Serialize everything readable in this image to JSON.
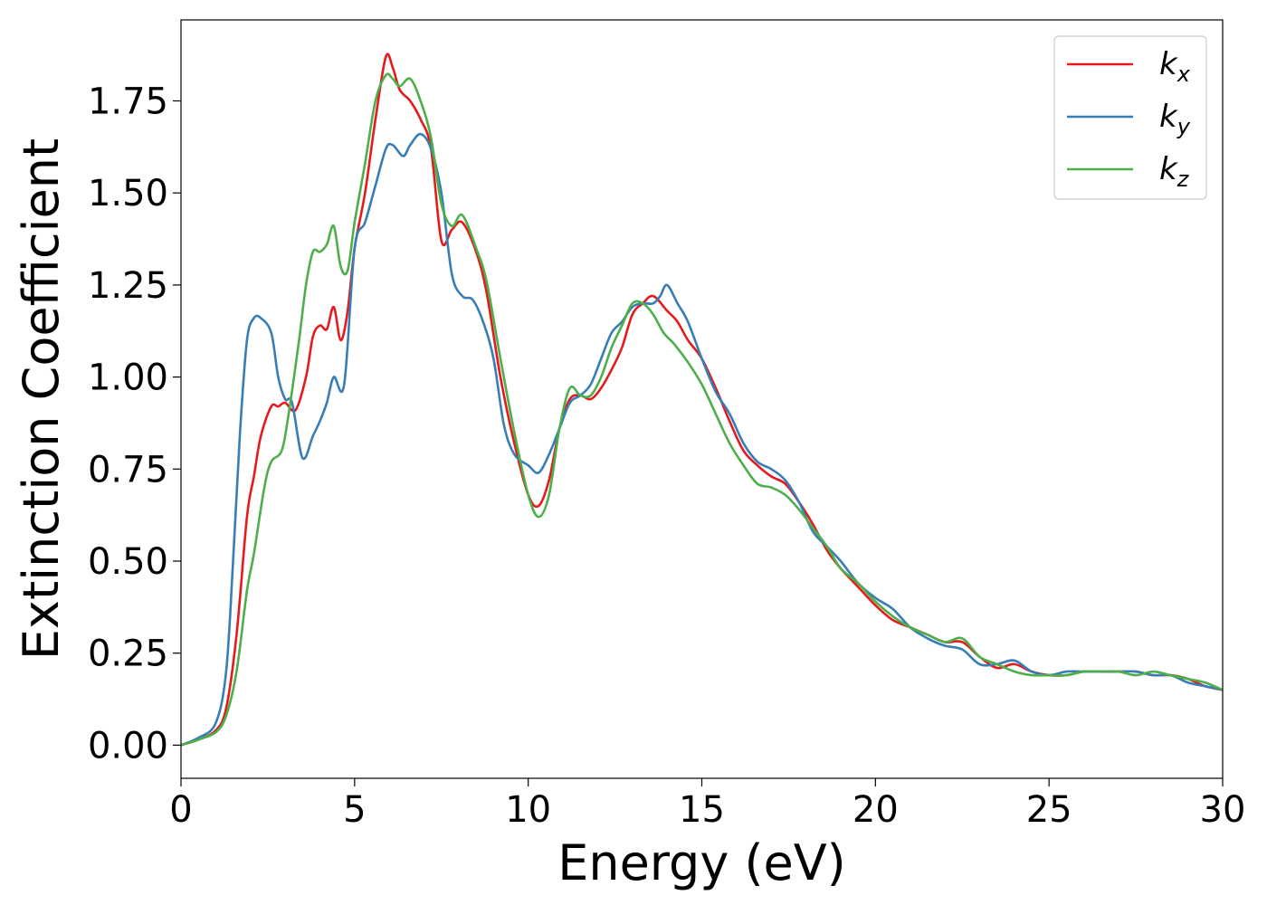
{
  "chart_data": {
    "type": "line",
    "xlabel": "Energy (eV)",
    "ylabel": "Extinction Coefficient",
    "xlim": [
      0,
      30
    ],
    "ylim": [
      -0.09,
      1.97
    ],
    "xticks": [
      0,
      5,
      10,
      15,
      20,
      25,
      30
    ],
    "xtick_labels": [
      "0",
      "5",
      "10",
      "15",
      "20",
      "25",
      "30"
    ],
    "yticks": [
      0,
      0.25,
      0.5,
      0.75,
      1.0,
      1.25,
      1.5,
      1.75
    ],
    "ytick_labels": [
      "0.00",
      "0.25",
      "0.50",
      "0.75",
      "1.00",
      "1.25",
      "1.50",
      "1.75"
    ],
    "grid": false,
    "legend_position": "top-right",
    "series": [
      {
        "name": "k_x",
        "legend_base": "k",
        "legend_sub": "x",
        "color": "#e41a1c",
        "x": [
          0,
          0.5,
          1.0,
          1.3,
          1.6,
          1.9,
          2.1,
          2.3,
          2.6,
          2.8,
          3.0,
          3.3,
          3.6,
          3.8,
          4.0,
          4.2,
          4.4,
          4.6,
          4.8,
          5.0,
          5.3,
          5.6,
          5.9,
          6.1,
          6.3,
          6.6,
          6.9,
          7.2,
          7.5,
          7.8,
          8.1,
          8.5,
          8.8,
          9.2,
          9.6,
          10.0,
          10.3,
          10.6,
          10.9,
          11.2,
          11.5,
          11.8,
          12.1,
          12.4,
          12.7,
          13.0,
          13.3,
          13.6,
          14.0,
          14.3,
          14.6,
          15.0,
          15.4,
          15.8,
          16.2,
          16.6,
          17.0,
          17.4,
          17.8,
          18.2,
          18.6,
          19.0,
          19.5,
          20.0,
          20.5,
          21.0,
          21.5,
          22.0,
          22.5,
          23.0,
          23.5,
          24.0,
          24.5,
          25.0,
          25.5,
          26.0,
          26.5,
          27.0,
          27.5,
          28.0,
          28.5,
          29.0,
          29.5,
          30.0
        ],
        "y": [
          0.0,
          0.015,
          0.04,
          0.1,
          0.3,
          0.62,
          0.73,
          0.84,
          0.92,
          0.92,
          0.93,
          0.91,
          1.0,
          1.11,
          1.14,
          1.13,
          1.19,
          1.1,
          1.18,
          1.35,
          1.5,
          1.7,
          1.87,
          1.84,
          1.78,
          1.75,
          1.7,
          1.62,
          1.37,
          1.4,
          1.42,
          1.34,
          1.23,
          1.0,
          0.82,
          0.68,
          0.65,
          0.72,
          0.86,
          0.94,
          0.95,
          0.94,
          0.97,
          1.02,
          1.08,
          1.17,
          1.2,
          1.22,
          1.18,
          1.15,
          1.1,
          1.05,
          0.97,
          0.88,
          0.8,
          0.76,
          0.73,
          0.71,
          0.66,
          0.6,
          0.53,
          0.48,
          0.43,
          0.38,
          0.34,
          0.32,
          0.3,
          0.28,
          0.28,
          0.24,
          0.21,
          0.22,
          0.2,
          0.19,
          0.19,
          0.2,
          0.2,
          0.2,
          0.2,
          0.19,
          0.19,
          0.18,
          0.16,
          0.15
        ]
      },
      {
        "name": "k_y",
        "legend_base": "k",
        "legend_sub": "y",
        "color": "#377eb8",
        "x": [
          0,
          0.5,
          1.0,
          1.3,
          1.5,
          1.7,
          1.9,
          2.1,
          2.3,
          2.6,
          2.8,
          3.0,
          3.2,
          3.5,
          3.8,
          4.0,
          4.2,
          4.4,
          4.7,
          5.0,
          5.3,
          5.6,
          5.9,
          6.1,
          6.4,
          6.6,
          6.9,
          7.2,
          7.5,
          7.8,
          8.1,
          8.4,
          8.7,
          9.0,
          9.3,
          9.6,
          10.0,
          10.3,
          10.6,
          10.9,
          11.2,
          11.5,
          11.8,
          12.1,
          12.4,
          12.7,
          13.0,
          13.3,
          13.6,
          13.8,
          14.0,
          14.3,
          14.6,
          15.0,
          15.4,
          15.8,
          16.2,
          16.6,
          17.0,
          17.4,
          17.8,
          18.2,
          18.6,
          19.0,
          19.5,
          20.0,
          20.5,
          21.0,
          21.5,
          22.0,
          22.5,
          23.0,
          23.5,
          24.0,
          24.5,
          25.0,
          25.5,
          26.0,
          26.5,
          27.0,
          27.5,
          28.0,
          28.5,
          29.0,
          29.5,
          30.0
        ],
        "y": [
          0.0,
          0.02,
          0.06,
          0.2,
          0.5,
          0.85,
          1.1,
          1.16,
          1.16,
          1.12,
          1.0,
          0.94,
          0.93,
          0.78,
          0.84,
          0.88,
          0.93,
          1.0,
          0.98,
          1.35,
          1.42,
          1.52,
          1.62,
          1.63,
          1.6,
          1.63,
          1.66,
          1.62,
          1.5,
          1.28,
          1.22,
          1.21,
          1.15,
          1.05,
          0.87,
          0.79,
          0.76,
          0.74,
          0.79,
          0.86,
          0.93,
          0.95,
          0.98,
          1.05,
          1.12,
          1.15,
          1.19,
          1.2,
          1.2,
          1.22,
          1.25,
          1.2,
          1.15,
          1.05,
          0.96,
          0.9,
          0.82,
          0.77,
          0.75,
          0.72,
          0.66,
          0.58,
          0.54,
          0.5,
          0.44,
          0.4,
          0.37,
          0.32,
          0.29,
          0.27,
          0.26,
          0.22,
          0.22,
          0.23,
          0.2,
          0.19,
          0.2,
          0.2,
          0.2,
          0.2,
          0.2,
          0.19,
          0.19,
          0.17,
          0.16,
          0.15
        ]
      },
      {
        "name": "k_z",
        "legend_base": "k",
        "legend_sub": "z",
        "color": "#4daf4a",
        "x": [
          0,
          0.5,
          1.0,
          1.3,
          1.6,
          1.9,
          2.1,
          2.4,
          2.6,
          2.9,
          3.1,
          3.4,
          3.6,
          3.8,
          4.0,
          4.2,
          4.4,
          4.6,
          4.8,
          5.0,
          5.3,
          5.6,
          5.9,
          6.1,
          6.3,
          6.6,
          6.9,
          7.2,
          7.5,
          7.8,
          8.1,
          8.5,
          8.8,
          9.2,
          9.6,
          10.0,
          10.3,
          10.6,
          10.9,
          11.2,
          11.5,
          11.8,
          12.1,
          12.4,
          12.7,
          13.0,
          13.3,
          13.6,
          13.9,
          14.2,
          14.6,
          15.0,
          15.4,
          15.8,
          16.2,
          16.6,
          17.0,
          17.4,
          17.8,
          18.2,
          18.6,
          19.0,
          19.5,
          20.0,
          20.5,
          21.0,
          21.5,
          22.0,
          22.5,
          23.0,
          23.5,
          24.0,
          24.5,
          25.0,
          25.5,
          26.0,
          26.5,
          27.0,
          27.5,
          28.0,
          28.5,
          29.0,
          29.5,
          30.0
        ],
        "y": [
          0.0,
          0.015,
          0.035,
          0.08,
          0.2,
          0.42,
          0.52,
          0.7,
          0.77,
          0.8,
          0.9,
          1.1,
          1.25,
          1.34,
          1.34,
          1.36,
          1.41,
          1.3,
          1.29,
          1.42,
          1.58,
          1.75,
          1.82,
          1.81,
          1.79,
          1.81,
          1.75,
          1.65,
          1.47,
          1.41,
          1.44,
          1.35,
          1.26,
          1.05,
          0.85,
          0.68,
          0.62,
          0.68,
          0.86,
          0.97,
          0.95,
          0.95,
          1.0,
          1.08,
          1.14,
          1.2,
          1.2,
          1.17,
          1.12,
          1.09,
          1.04,
          0.98,
          0.9,
          0.82,
          0.76,
          0.71,
          0.7,
          0.68,
          0.64,
          0.59,
          0.54,
          0.48,
          0.44,
          0.39,
          0.35,
          0.32,
          0.3,
          0.28,
          0.29,
          0.24,
          0.22,
          0.2,
          0.19,
          0.19,
          0.19,
          0.2,
          0.2,
          0.2,
          0.19,
          0.2,
          0.19,
          0.18,
          0.17,
          0.15
        ]
      }
    ]
  }
}
